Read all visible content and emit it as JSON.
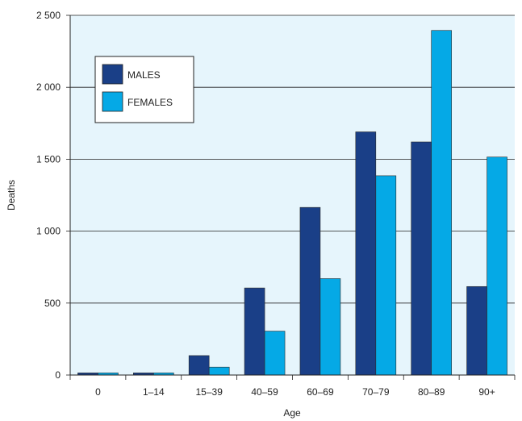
{
  "chart_data": {
    "type": "bar",
    "title": "",
    "xlabel": "Age",
    "ylabel": "Deaths",
    "categories": [
      "0",
      "1–14",
      "15–39",
      "40–59",
      "60–69",
      "70–79",
      "80–89",
      "90+"
    ],
    "series": [
      {
        "name": "MALES",
        "color": "#1a3f87",
        "values": [
          15,
          15,
          135,
          605,
          1165,
          1690,
          1620,
          615
        ]
      },
      {
        "name": "FEMALES",
        "color": "#05a9e6",
        "values": [
          15,
          15,
          55,
          305,
          670,
          1385,
          2395,
          1515
        ]
      }
    ],
    "ylim": [
      0,
      2500
    ],
    "yticks": [
      0,
      500,
      1000,
      1500,
      2000,
      2500
    ],
    "ytick_labels": [
      "0",
      "500",
      "1 000",
      "1 500",
      "2 000",
      "2 500"
    ],
    "grid": "horizontal",
    "legend_placement": "top-left",
    "plot_background": "#e6f5fc"
  }
}
